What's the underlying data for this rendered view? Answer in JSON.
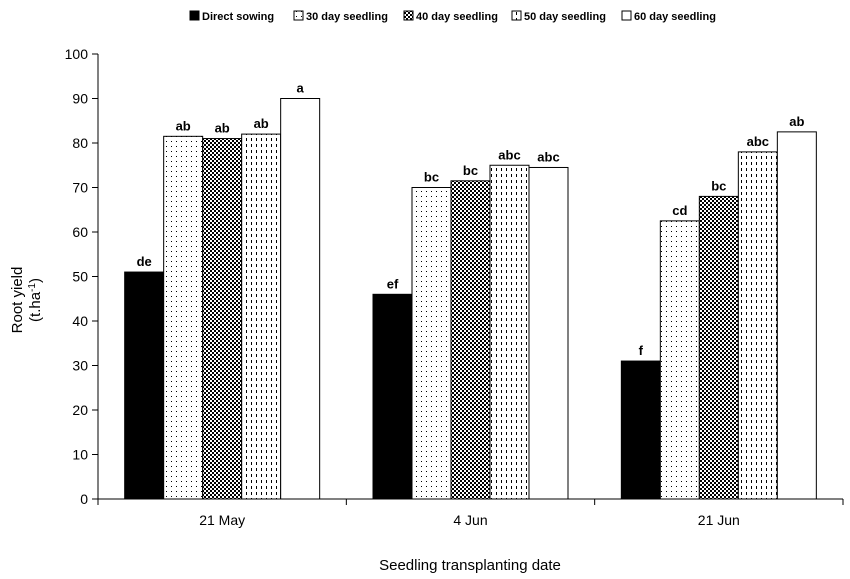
{
  "chart_data": {
    "type": "bar",
    "title": "",
    "xlabel": "Seedling transplanting date",
    "ylabel_line1": "Root yield",
    "ylabel_line2_prefix": "(t.ha",
    "ylabel_line2_sup": "-1",
    "ylabel_line2_suffix": ")",
    "ylim": [
      0,
      100
    ],
    "ytick_step": 10,
    "grid": false,
    "legend_position": "top",
    "categories": [
      "21 May",
      "4 Jun",
      "21 Jun"
    ],
    "series": [
      {
        "name": "Direct sowing",
        "pattern": "solid-black",
        "values": [
          51,
          46,
          31
        ],
        "labels": [
          "de",
          "ef",
          "f"
        ]
      },
      {
        "name": "30 day seedling",
        "pattern": "sparse-dots",
        "values": [
          81.5,
          70,
          62.5
        ],
        "labels": [
          "ab",
          "bc",
          "cd"
        ]
      },
      {
        "name": "40 day seedling",
        "pattern": "dense-dots",
        "values": [
          81,
          71.5,
          68
        ],
        "labels": [
          "ab",
          "bc",
          "bc"
        ]
      },
      {
        "name": "50 day seedling",
        "pattern": "dashes",
        "values": [
          82,
          75,
          78
        ],
        "labels": [
          "ab",
          "abc",
          "abc"
        ]
      },
      {
        "name": "60 day seedling",
        "pattern": "white",
        "values": [
          90,
          74.5,
          82.5
        ],
        "labels": [
          "a",
          "abc",
          "ab"
        ]
      }
    ]
  }
}
